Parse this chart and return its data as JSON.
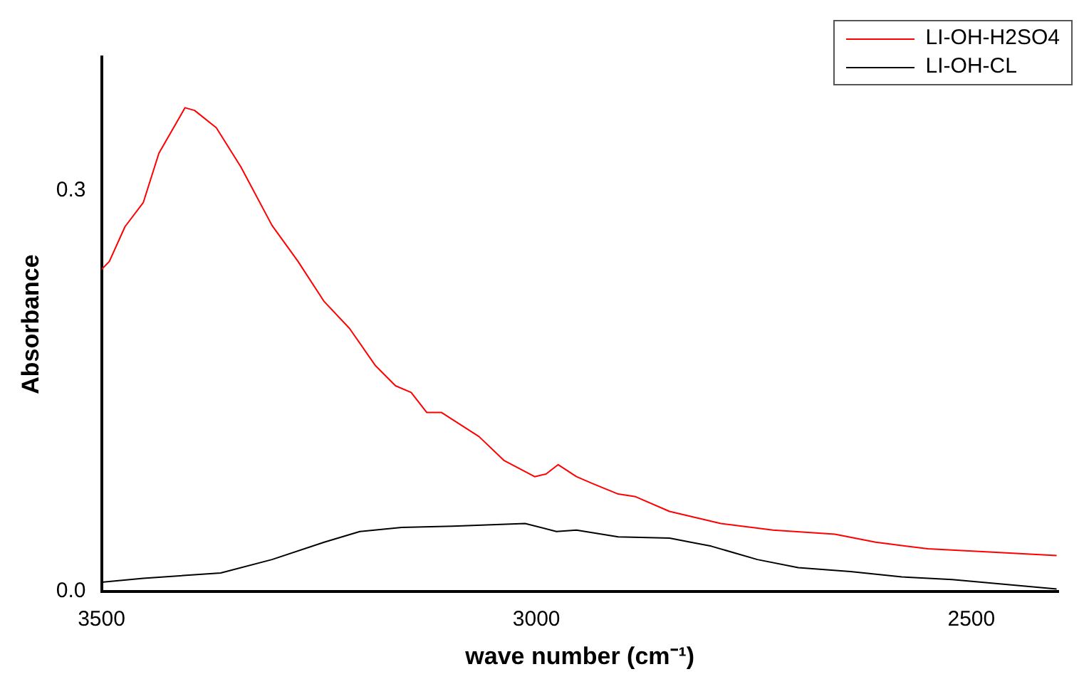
{
  "chart_data": {
    "type": "line",
    "xlabel": "wave number (cm⁻¹)",
    "ylabel": "Absorbance",
    "xlim": [
      3500,
      2400
    ],
    "ylim": [
      0,
      0.4
    ],
    "xticks": [
      3500,
      3000,
      2500
    ],
    "yticks": [
      {
        "value": 0,
        "label": "0.0"
      },
      0.3
    ],
    "grid": false,
    "legend": "top right",
    "marker": "none",
    "line_style": "solid",
    "series": [
      {
        "name": "LI-OH-H2SO4",
        "color": "#ff0000",
        "x": [
          3500,
          3491,
          3473,
          3452,
          3434,
          3404,
          3393,
          3368,
          3340,
          3304,
          3274,
          3244,
          3215,
          3185,
          3162,
          3144,
          3126,
          3109,
          3066,
          3037,
          3002,
          2989,
          2975,
          2954,
          2936,
          2906,
          2886,
          2847,
          2788,
          2728,
          2657,
          2610,
          2550,
          2491,
          2402
        ],
        "values": [
          0.241,
          0.247,
          0.273,
          0.291,
          0.328,
          0.362,
          0.36,
          0.347,
          0.318,
          0.274,
          0.247,
          0.217,
          0.197,
          0.169,
          0.154,
          0.149,
          0.134,
          0.134,
          0.116,
          0.098,
          0.086,
          0.088,
          0.095,
          0.086,
          0.081,
          0.073,
          0.071,
          0.06,
          0.051,
          0.046,
          0.043,
          0.037,
          0.032,
          0.03,
          0.027
        ]
      },
      {
        "name": "LI-OH-CL",
        "color": "#000000",
        "x": [
          3500,
          3452,
          3363,
          3304,
          3244,
          3203,
          3155,
          3096,
          3013,
          2977,
          2954,
          2906,
          2847,
          2799,
          2746,
          2699,
          2639,
          2580,
          2522,
          2402
        ],
        "values": [
          0.007,
          0.01,
          0.014,
          0.024,
          0.037,
          0.045,
          0.048,
          0.049,
          0.051,
          0.045,
          0.046,
          0.041,
          0.04,
          0.034,
          0.024,
          0.018,
          0.015,
          0.011,
          0.009,
          0.002
        ]
      }
    ]
  }
}
